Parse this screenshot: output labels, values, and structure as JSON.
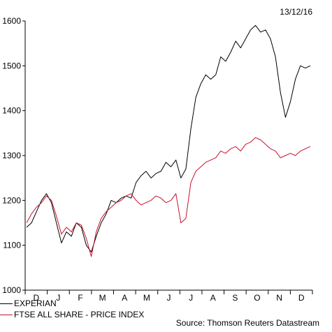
{
  "date_label": "13/12/16",
  "source_label": "Source: Thomson Reuters Datastream",
  "colors": {
    "series1": "#000000",
    "series2": "#c8102e",
    "axis": "#000000"
  },
  "chart_data": {
    "type": "line",
    "x_labels": [
      "D",
      "J",
      "F",
      "M",
      "A",
      "M",
      "J",
      "J",
      "A",
      "S",
      "O",
      "N",
      "D"
    ],
    "ylim": [
      1000,
      1600
    ],
    "yticks": [
      1000,
      1100,
      1200,
      1300,
      1400,
      1500,
      1600
    ],
    "grid": false,
    "legend_position": "bottom-left",
    "series": [
      {
        "name": "EXPERIAN",
        "color": "#000000",
        "values": [
          1140,
          1150,
          1175,
          1200,
          1215,
          1195,
          1150,
          1105,
          1130,
          1120,
          1150,
          1140,
          1100,
          1085,
          1120,
          1150,
          1170,
          1200,
          1195,
          1205,
          1210,
          1205,
          1240,
          1255,
          1265,
          1250,
          1260,
          1265,
          1285,
          1275,
          1290,
          1250,
          1270,
          1360,
          1430,
          1460,
          1480,
          1470,
          1480,
          1520,
          1510,
          1530,
          1555,
          1540,
          1560,
          1580,
          1590,
          1575,
          1580,
          1560,
          1520,
          1440,
          1385,
          1420,
          1470,
          1500,
          1495,
          1500
        ]
      },
      {
        "name": "FTSE ALL SHARE - PRICE INDEX",
        "color": "#c8102e",
        "values": [
          1150,
          1170,
          1185,
          1195,
          1210,
          1200,
          1165,
          1125,
          1140,
          1130,
          1150,
          1145,
          1115,
          1075,
          1130,
          1160,
          1175,
          1185,
          1195,
          1200,
          1210,
          1215,
          1200,
          1190,
          1195,
          1200,
          1210,
          1205,
          1195,
          1200,
          1215,
          1150,
          1160,
          1240,
          1265,
          1275,
          1285,
          1290,
          1295,
          1310,
          1305,
          1315,
          1320,
          1310,
          1325,
          1330,
          1340,
          1335,
          1325,
          1315,
          1310,
          1295,
          1300,
          1305,
          1300,
          1310,
          1315,
          1320
        ]
      }
    ]
  }
}
